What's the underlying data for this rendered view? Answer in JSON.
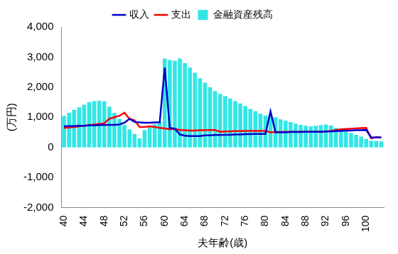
{
  "chart_data": {
    "type": "bar",
    "x_label": "夫年齢(歳)",
    "y_label": "(万円)",
    "categories": [
      40,
      null,
      null,
      null,
      44,
      null,
      null,
      null,
      48,
      null,
      null,
      null,
      52,
      null,
      null,
      null,
      56,
      null,
      null,
      null,
      60,
      null,
      null,
      null,
      64,
      null,
      null,
      null,
      68,
      null,
      null,
      null,
      72,
      null,
      null,
      null,
      76,
      null,
      null,
      null,
      80,
      null,
      null,
      null,
      84,
      null,
      null,
      null,
      88,
      null,
      null,
      null,
      92,
      null,
      null,
      null,
      96,
      null,
      null,
      null,
      100,
      null,
      null,
      null
    ],
    "series": [
      {
        "name": "金融資産残高",
        "type": "bar",
        "color": "#33e6e6",
        "values": [
          1050,
          1150,
          1250,
          1330,
          1420,
          1500,
          1540,
          1550,
          1530,
          1350,
          1150,
          950,
          750,
          600,
          450,
          300,
          580,
          700,
          780,
          860,
          2950,
          2900,
          2880,
          2950,
          2800,
          2650,
          2480,
          2300,
          2150,
          2000,
          1870,
          1780,
          1700,
          1620,
          1540,
          1460,
          1370,
          1280,
          1200,
          1120,
          1060,
          1050,
          1000,
          930,
          890,
          840,
          790,
          750,
          720,
          700,
          720,
          740,
          760,
          730,
          650,
          600,
          540,
          480,
          420,
          360,
          280,
          220,
          210,
          200
        ]
      },
      {
        "name": "収入",
        "type": "line",
        "color": "#0000cc",
        "marker": "none",
        "values": [
          700,
          710,
          710,
          720,
          720,
          730,
          730,
          740,
          740,
          750,
          750,
          760,
          820,
          950,
          850,
          830,
          820,
          820,
          830,
          830,
          2650,
          650,
          620,
          430,
          390,
          380,
          380,
          380,
          400,
          400,
          410,
          410,
          420,
          420,
          430,
          430,
          440,
          440,
          450,
          450,
          450,
          1200,
          500,
          500,
          500,
          510,
          510,
          510,
          520,
          520,
          520,
          520,
          530,
          530,
          540,
          550,
          560,
          560,
          570,
          570,
          580,
          330,
          330,
          330
        ]
      },
      {
        "name": "支出",
        "type": "line",
        "color": "#ff0000",
        "marker": "none",
        "values": [
          650,
          660,
          680,
          700,
          720,
          740,
          760,
          780,
          800,
          950,
          1000,
          1050,
          1150,
          950,
          900,
          680,
          680,
          700,
          680,
          650,
          630,
          600,
          620,
          580,
          570,
          560,
          560,
          570,
          570,
          580,
          580,
          520,
          530,
          530,
          540,
          540,
          550,
          550,
          550,
          550,
          550,
          500,
          510,
          510,
          520,
          520,
          520,
          520,
          520,
          520,
          520,
          520,
          530,
          550,
          580,
          600,
          610,
          620,
          630,
          640,
          650,
          300,
          340,
          330
        ]
      }
    ],
    "ylim": [
      -2000,
      4000
    ],
    "yticks": [
      -2000,
      -1000,
      0,
      1000,
      2000,
      3000,
      4000
    ],
    "grid": false,
    "legend": "top"
  }
}
